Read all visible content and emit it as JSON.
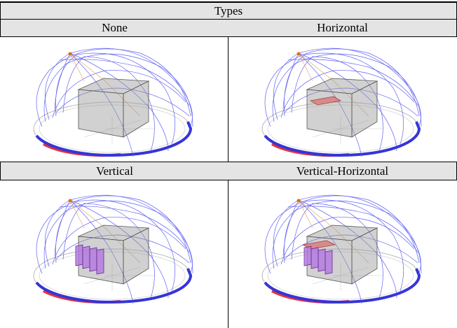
{
  "header": {
    "title": "Types"
  },
  "table": {
    "rows": [
      [
        "None",
        "Horizontal"
      ],
      [
        "Vertical",
        "Vertical-Horizontal"
      ]
    ]
  }
}
